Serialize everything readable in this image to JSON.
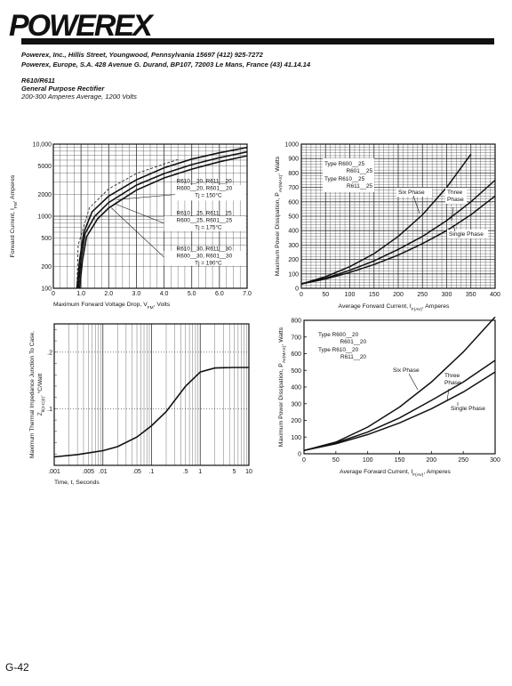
{
  "brand": "POWEREX",
  "header": {
    "line1": "Powerex, Inc., Hillis Street, Youngwood, Pennsylvania 15697 (412) 925-7272",
    "line2": "Powerex, Europe, S.A. 428 Avenue G. Durand, BP107, 72003 Le Mans, France (43) 41.14.14",
    "part": "R610/R611",
    "desc": "General Purpose Rectifier",
    "rating": "200-300 Amperes Average, 1200 Volts"
  },
  "page_number": "G-42",
  "chart_data": [
    {
      "type": "line",
      "xlabel": "Maximum Forward Voltage Drop, V",
      "xlabel_sub": "FM",
      "xlabel_suffix": ", Volts",
      "ylabel": "Forward Current, I",
      "ylabel_sub": "FM",
      "ylabel_suffix": ", Amperes",
      "xlim": [
        0,
        7
      ],
      "ylim": [
        100,
        10000
      ],
      "yscale": "log",
      "x_ticks": [
        "0",
        "1.0",
        "2.0",
        "3.0",
        "4.0",
        "5.0",
        "6.0",
        "7.0"
      ],
      "y_ticks": [
        "100",
        "200",
        "500",
        "1000",
        "2000",
        "5000",
        "10,000"
      ],
      "grid": true,
      "series": [
        {
          "x": [
            0.85,
            0.95,
            1.1,
            1.4,
            2.0,
            3.0,
            4.0,
            5.0,
            6.0,
            7.0
          ],
          "y": [
            100,
            250,
            600,
            1150,
            1900,
            3200,
            4700,
            6200,
            7600,
            9000
          ]
        },
        {
          "x": [
            0.9,
            1.0,
            1.15,
            1.5,
            2.0,
            3.0,
            4.0,
            5.0,
            6.0,
            7.0
          ],
          "y": [
            100,
            250,
            580,
            1000,
            1550,
            2700,
            3900,
            5200,
            6500,
            7800
          ]
        },
        {
          "x": [
            0.95,
            1.05,
            1.2,
            1.6,
            2.0,
            3.0,
            4.0,
            5.0,
            6.0,
            7.0
          ],
          "y": [
            100,
            240,
            520,
            920,
            1300,
            2300,
            3400,
            4500,
            5700,
            6900
          ]
        }
      ],
      "annotations": [
        {
          "lines": [
            "R610__20, R611__20",
            "R600__20, R601__20",
            "Tj = 150°C"
          ]
        },
        {
          "lines": [
            "R610__25, R611__25",
            "R600__25, R601__25",
            "Tj = 175°C"
          ]
        },
        {
          "lines": [
            "R610__30, R611__30",
            "R600__30, R601__30",
            "Tj = 190°C"
          ]
        }
      ]
    },
    {
      "type": "line",
      "xlabel": "Average Forward Current, I",
      "xlabel_sub": "F(AV)",
      "xlabel_suffix": ", Amperes",
      "ylabel": "Maximum Power Dissipation, P",
      "ylabel_sub": "AV(MAX)",
      "ylabel_suffix": ", Watts",
      "xlim": [
        0,
        400
      ],
      "ylim": [
        0,
        1000
      ],
      "x_ticks": [
        "0",
        "50",
        "100",
        "150",
        "200",
        "250",
        "300",
        "350",
        "400"
      ],
      "y_ticks": [
        "0",
        "100",
        "200",
        "300",
        "400",
        "500",
        "600",
        "700",
        "800",
        "900",
        "1000"
      ],
      "grid": true,
      "legend": [
        "Type R600__25",
        "R601__25",
        "Type R610__25",
        "R611__25"
      ],
      "series": [
        {
          "name": "Six Phase",
          "x": [
            0,
            50,
            100,
            150,
            200,
            250,
            300,
            350
          ],
          "y": [
            30,
            80,
            150,
            240,
            360,
            510,
            700,
            930
          ]
        },
        {
          "name": "Three Phase",
          "x": [
            0,
            50,
            100,
            150,
            200,
            250,
            300,
            350,
            400
          ],
          "y": [
            30,
            70,
            125,
            190,
            270,
            360,
            470,
            600,
            750
          ]
        },
        {
          "name": "Single Phase",
          "x": [
            0,
            50,
            100,
            150,
            200,
            250,
            300,
            350,
            400
          ],
          "y": [
            30,
            65,
            110,
            165,
            230,
            310,
            400,
            510,
            640
          ]
        }
      ]
    },
    {
      "type": "line",
      "xlabel": "Time, t, Seconds",
      "ylabel": "Maximum Thermal Impedance Junction To Case,",
      "ylabel2": "Z",
      "ylabel2_sub": "θ(J-C)(t)",
      "ylabel2_suffix": ", °C/Watt",
      "xlim": [
        0.001,
        10
      ],
      "ylim": [
        0,
        0.25
      ],
      "xscale": "log",
      "x_ticks": [
        ".001",
        ".005",
        ".01",
        ".05",
        ".1",
        ".5",
        "1",
        "5",
        "10"
      ],
      "y_ticks": [
        ".1",
        ".2"
      ],
      "grid": true,
      "series": [
        {
          "x": [
            0.001,
            0.003,
            0.01,
            0.02,
            0.05,
            0.1,
            0.2,
            0.5,
            1,
            2,
            5,
            10
          ],
          "y": [
            0.015,
            0.019,
            0.026,
            0.033,
            0.05,
            0.07,
            0.095,
            0.14,
            0.165,
            0.172,
            0.173,
            0.173
          ]
        }
      ]
    },
    {
      "type": "line",
      "xlabel": "Average Forward Current, I",
      "xlabel_sub": "F(AV)",
      "xlabel_suffix": ", Amperes",
      "ylabel": "Maximum Power Dissipation, P",
      "ylabel_sub": "AV(MAX)",
      "ylabel_suffix": ", Watts",
      "xlim": [
        0,
        300
      ],
      "ylim": [
        0,
        800
      ],
      "x_ticks": [
        "0",
        "50",
        "100",
        "150",
        "200",
        "250",
        "300"
      ],
      "y_ticks": [
        "0",
        "100",
        "200",
        "300",
        "400",
        "500",
        "600",
        "700",
        "800"
      ],
      "grid": false,
      "legend": [
        "Type R600__20",
        "R601__20",
        "Type R610__20",
        "R611__20"
      ],
      "series": [
        {
          "name": "Six Phase",
          "x": [
            0,
            50,
            100,
            150,
            200,
            250,
            300
          ],
          "y": [
            20,
            70,
            160,
            280,
            430,
            610,
            820
          ]
        },
        {
          "name": "Three Phase",
          "x": [
            0,
            50,
            100,
            150,
            200,
            250,
            300
          ],
          "y": [
            20,
            65,
            130,
            215,
            320,
            430,
            560
          ]
        },
        {
          "name": "Single Phase",
          "x": [
            0,
            50,
            100,
            150,
            200,
            250,
            300
          ],
          "y": [
            20,
            60,
            115,
            185,
            270,
            370,
            490
          ]
        }
      ]
    }
  ]
}
